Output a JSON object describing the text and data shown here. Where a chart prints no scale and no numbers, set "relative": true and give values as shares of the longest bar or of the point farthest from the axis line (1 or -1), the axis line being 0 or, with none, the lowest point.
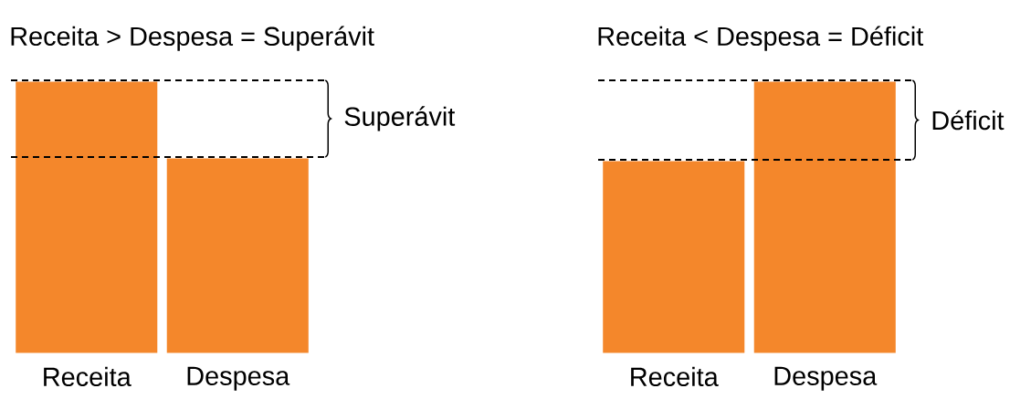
{
  "chart_data": [
    {
      "type": "bar",
      "title": "Receita > Despesa = Superávit",
      "categories": [
        "Receita",
        "Despesa"
      ],
      "values": [
        1,
        0.72
      ],
      "relative": true,
      "color": "#f4872b",
      "ref_lines": [
        {
          "axis": "y",
          "value": 1,
          "line_style": "dashed"
        },
        {
          "axis": "y",
          "value": 0.72,
          "line_style": "dashed"
        }
      ],
      "annotations": [
        "Superávit"
      ]
    },
    {
      "type": "bar",
      "title": "Receita < Despesa = Déficit",
      "categories": [
        "Receita",
        "Despesa"
      ],
      "values": [
        0.71,
        1
      ],
      "relative": true,
      "color": "#f4872b",
      "ref_lines": [
        {
          "axis": "y",
          "value": 1,
          "line_style": "dashed"
        },
        {
          "axis": "y",
          "value": 0.71,
          "line_style": "dashed"
        }
      ],
      "annotations": [
        "Déficit"
      ]
    }
  ]
}
